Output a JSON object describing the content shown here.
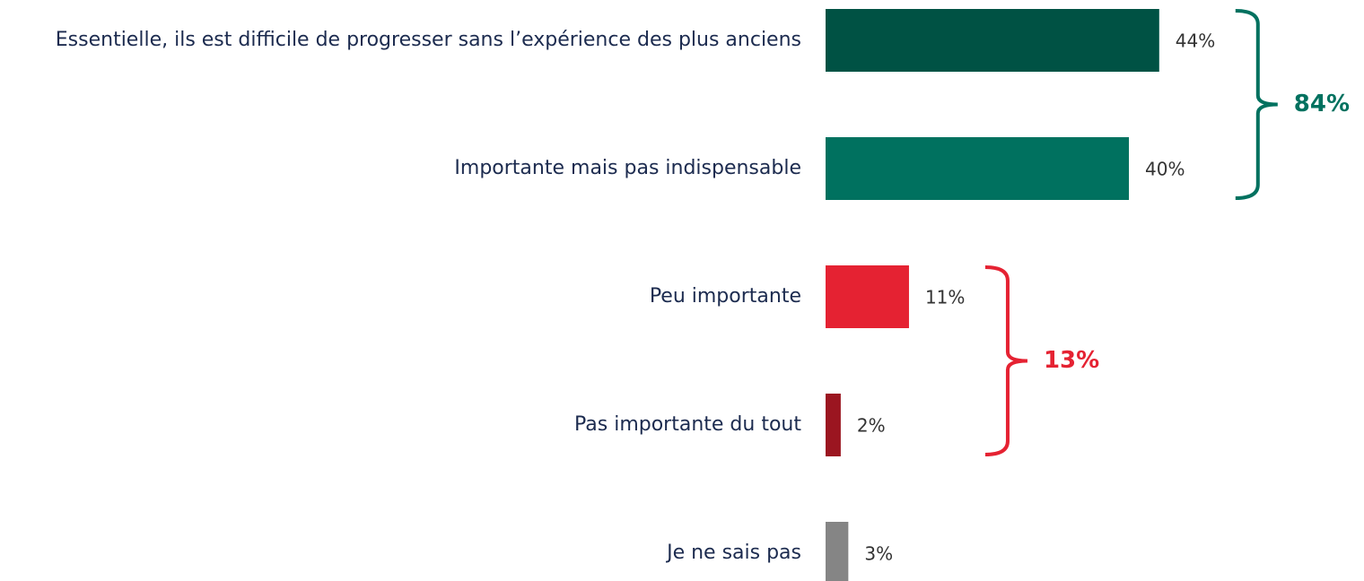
{
  "chart_data": {
    "type": "bar",
    "orientation": "horizontal",
    "categories": [
      "Essentielle, ils est difficile de progresser sans l’expérience des plus anciens",
      "Importante mais pas indispensable",
      "Peu importante",
      "Pas importante du tout",
      "Je ne sais pas"
    ],
    "values": [
      44,
      40,
      11,
      2,
      3
    ],
    "value_labels": [
      "44%",
      "40%",
      "11%",
      "2%",
      "3%"
    ],
    "colors": [
      "#005244",
      "#00715f",
      "#e52232",
      "#9b1520",
      "#858585"
    ],
    "groups": [
      {
        "label": "84%",
        "value": 84,
        "color": "#00715f",
        "members": [
          0,
          1
        ]
      },
      {
        "label": "13%",
        "value": 13,
        "color": "#e52232",
        "members": [
          2,
          3
        ]
      }
    ]
  }
}
